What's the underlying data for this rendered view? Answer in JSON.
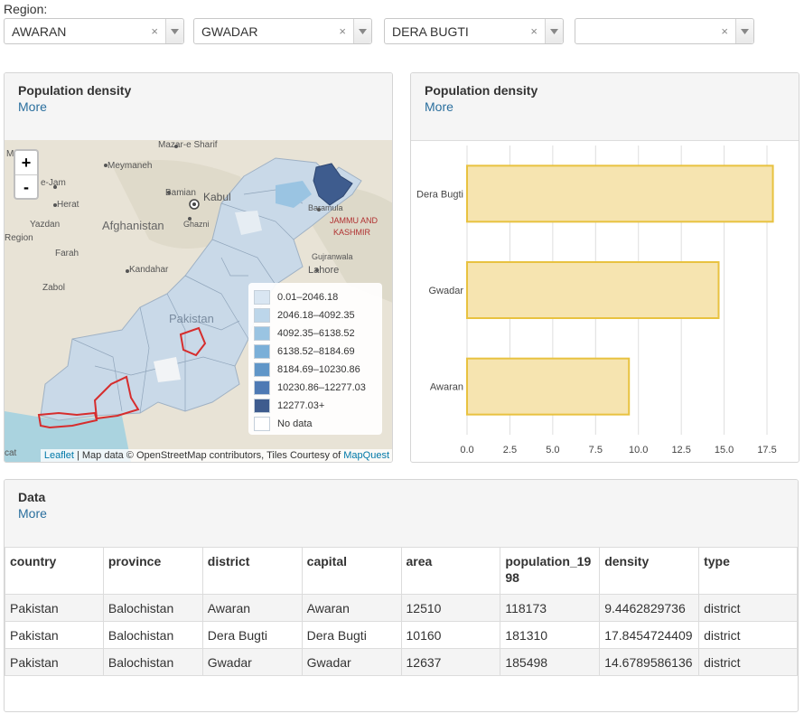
{
  "region": {
    "label": "Region:",
    "selects": [
      {
        "value": "AWARAN",
        "clear": "×"
      },
      {
        "value": "GWADAR",
        "clear": "×"
      },
      {
        "value": "DERA BUGTI",
        "clear": "×"
      },
      {
        "value": "",
        "clear": "×"
      }
    ]
  },
  "map_panel": {
    "title": "Population density",
    "more": "More",
    "zoom_in": "+",
    "zoom_out": "-",
    "legend": [
      {
        "label": "0.01–2046.18",
        "color": "#d9e6f2"
      },
      {
        "label": "2046.18–4092.35",
        "color": "#bcd6ea"
      },
      {
        "label": "4092.35–6138.52",
        "color": "#9ac4e2"
      },
      {
        "label": "6138.52–8184.69",
        "color": "#7aafd8"
      },
      {
        "label": "8184.69–10230.86",
        "color": "#6096c8"
      },
      {
        "label": "10230.86–12277.03",
        "color": "#4e7ab4"
      },
      {
        "label": "12277.03+",
        "color": "#3e5c8e"
      },
      {
        "label": "No data",
        "color": "#ffffff"
      }
    ],
    "place_labels": {
      "mazar": "Mazar-e Sharif",
      "maimana": "Meymaneh",
      "jam": "e-Jam",
      "bamian": "Bamian",
      "kabul": "Kabul",
      "herat": "Herat",
      "ghazni": "Ghazni",
      "yazdan": "Yazdan",
      "afghanistan": "Afghanistan",
      "farah": "Farah",
      "kandahar": "Kandahar",
      "zabol": "Zabol",
      "pakistan": "Pakistan",
      "lahore": "Lahore",
      "baramula": "Baramula",
      "jammu": "JAMMU AND",
      "kashmir": "KASHMIR",
      "gujranwala": "Gujranwala",
      "region": "Region",
      "mad": "Mad",
      "cat": "cat"
    },
    "attribution": {
      "leaflet": "Leaflet",
      "text": " | Map data © OpenStreetMap contributors, Tiles Courtesy of ",
      "mapquest": "MapQuest"
    }
  },
  "chart_panel": {
    "title": "Population density",
    "more": "More"
  },
  "chart_data": {
    "type": "bar",
    "orientation": "horizontal",
    "categories": [
      "Dera Bugti",
      "Gwadar",
      "Awaran"
    ],
    "values": [
      17.8454724409,
      14.6789586136,
      9.4462829736
    ],
    "xlim": [
      0,
      18.5
    ],
    "xticks": [
      "0.0",
      "2.5",
      "5.0",
      "7.5",
      "10.0",
      "12.5",
      "15.0",
      "17.5"
    ],
    "xtick_values": [
      0,
      2.5,
      5,
      7.5,
      10,
      12.5,
      15,
      17.5
    ],
    "grid": true,
    "bar_fill": "#f6e4b0",
    "bar_stroke": "#e8c240"
  },
  "data_panel": {
    "title": "Data",
    "more": "More",
    "columns": [
      "country",
      "province",
      "district",
      "capital",
      "area",
      "population_1998",
      "density",
      "type"
    ],
    "rows": [
      [
        "Pakistan",
        "Balochistan",
        "Awaran",
        "Awaran",
        "12510",
        "118173",
        "9.4462829736",
        "district"
      ],
      [
        "Pakistan",
        "Balochistan",
        "Dera Bugti",
        "Dera Bugti",
        "10160",
        "181310",
        "17.8454724409",
        "district"
      ],
      [
        "Pakistan",
        "Balochistan",
        "Gwadar",
        "Gwadar",
        "12637",
        "185498",
        "14.6789586136",
        "district"
      ]
    ]
  }
}
